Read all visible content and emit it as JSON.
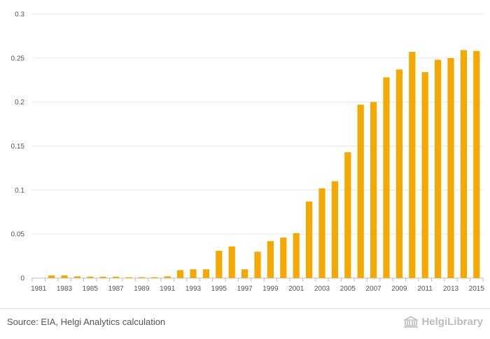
{
  "chart_data": {
    "type": "bar",
    "title": "",
    "xlabel": "",
    "ylabel": "",
    "ylim": [
      0,
      0.3
    ],
    "yticks": [
      "0",
      "0.05",
      "0.1",
      "0.15",
      "0.2",
      "0.25",
      "0.3"
    ],
    "ytick_values": [
      0,
      0.05,
      0.1,
      0.15,
      0.2,
      0.25,
      0.3
    ],
    "categories": [
      "1981",
      "1982",
      "1983",
      "1984",
      "1985",
      "1986",
      "1987",
      "1988",
      "1989",
      "1990",
      "1991",
      "1992",
      "1993",
      "1994",
      "1995",
      "1996",
      "1997",
      "1998",
      "1999",
      "2000",
      "2001",
      "2002",
      "2003",
      "2004",
      "2005",
      "2006",
      "2007",
      "2008",
      "2009",
      "2010",
      "2011",
      "2012",
      "2013",
      "2014",
      "2015"
    ],
    "xtick_labels": [
      "1981",
      "1983",
      "1985",
      "1987",
      "1989",
      "1991",
      "1993",
      "1995",
      "1997",
      "1999",
      "2001",
      "2003",
      "2005",
      "2007",
      "2009",
      "2011",
      "2013",
      "2015"
    ],
    "values": [
      0,
      0.003,
      0.003,
      0.002,
      0.0015,
      0.0015,
      0.0015,
      0.001,
      0.001,
      0.001,
      0.002,
      0.009,
      0.01,
      0.01,
      0.031,
      0.036,
      0.01,
      0.03,
      0.042,
      0.046,
      0.051,
      0.087,
      0.102,
      0.11,
      0.143,
      0.197,
      0.2,
      0.228,
      0.237,
      0.257,
      0.234,
      0.248,
      0.25,
      0.259,
      0.258
    ],
    "bar_color": "#f5a800",
    "grid": true
  },
  "footer": {
    "source": "Source: EIA, Helgi Analytics calculation",
    "logo_text": "HelgiLibrary"
  },
  "colors": {
    "grid": "#e6e6e6",
    "axis": "#bbbbbb",
    "logo": "#bdbdbd"
  }
}
